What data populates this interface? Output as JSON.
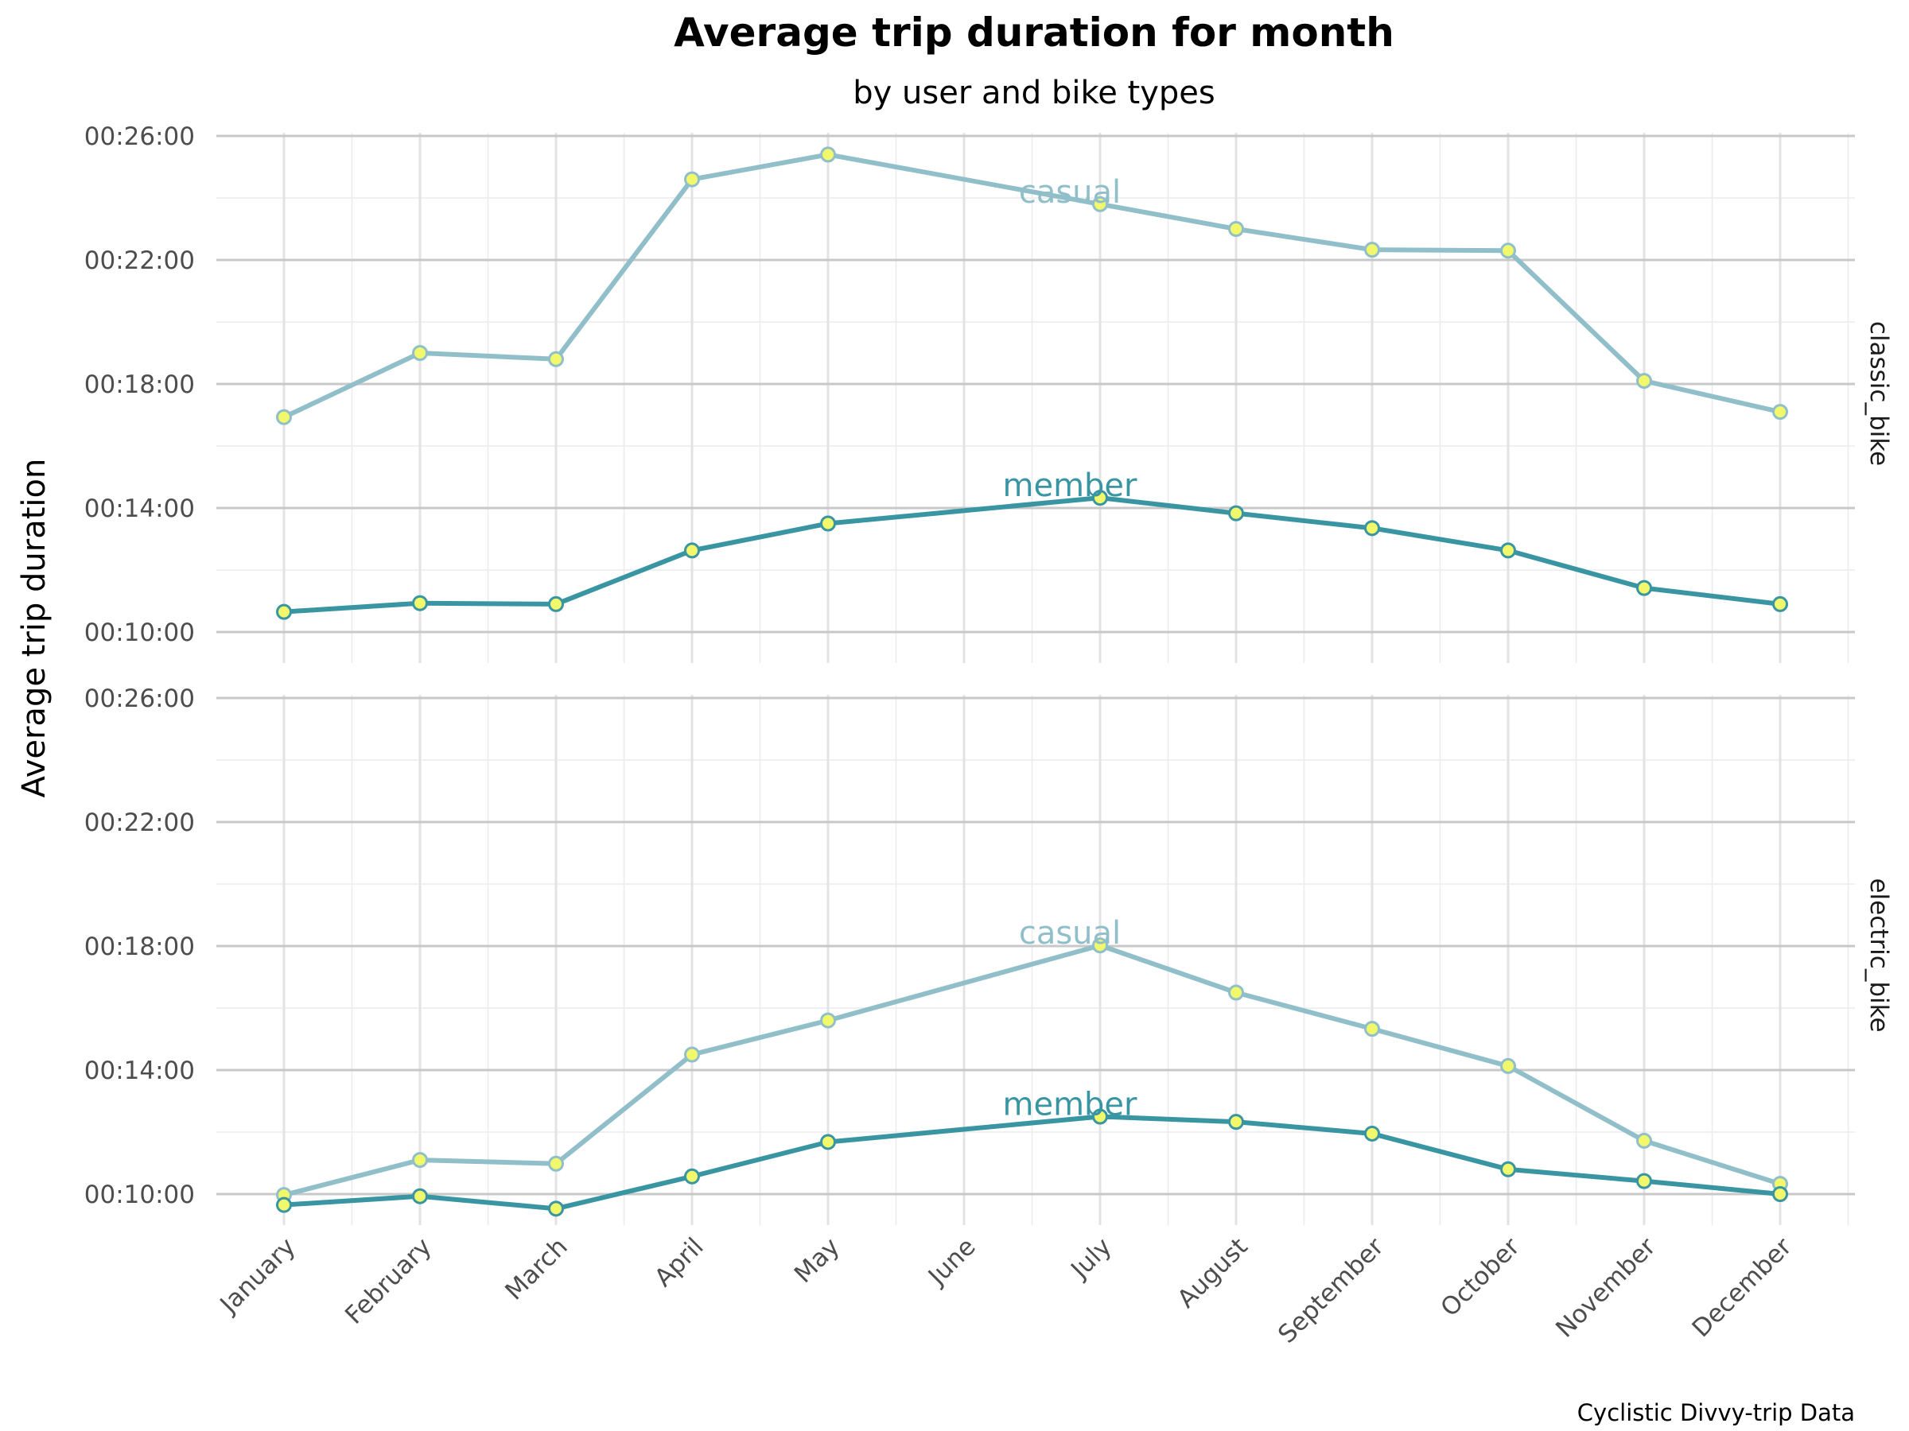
{
  "chart_data": {
    "type": "line",
    "title": "Average trip duration for month",
    "subtitle": "by user and bike types",
    "ylabel": "Average trip duration",
    "xlabel": "",
    "caption": "Cyclistic Divvy-trip Data",
    "categories": [
      "January",
      "February",
      "March",
      "April",
      "May",
      "June",
      "July",
      "August",
      "September",
      "October",
      "November",
      "December"
    ],
    "y_ticks": [
      "00:10:00",
      "00:14:00",
      "00:18:00",
      "00:22:00",
      "00:26:00"
    ],
    "y_tick_minutes": [
      10,
      14,
      18,
      22,
      26
    ],
    "ylim_minutes": [
      9.0,
      26.1
    ],
    "colors": {
      "casual": "#90bfca",
      "member": "#3a95a3",
      "point_fill": "#f1f86b"
    },
    "facets": [
      {
        "name": "classic_bike",
        "series": [
          {
            "name": "casual",
            "label": "casual",
            "label_at": "July",
            "values": [
              16.93,
              19.0,
              18.8,
              24.6,
              25.4,
              null,
              23.8,
              23.0,
              22.33,
              22.3,
              18.1,
              17.1
            ]
          },
          {
            "name": "member",
            "label": "member",
            "label_at": "July",
            "values": [
              10.65,
              10.93,
              10.9,
              12.63,
              13.5,
              null,
              14.33,
              13.83,
              13.35,
              12.63,
              11.42,
              10.9
            ]
          }
        ]
      },
      {
        "name": "electric_bike",
        "series": [
          {
            "name": "casual",
            "label": "casual",
            "label_at": "July",
            "values": [
              9.97,
              11.1,
              10.98,
              14.5,
              15.6,
              null,
              18.02,
              16.5,
              15.33,
              14.13,
              11.72,
              10.33
            ]
          },
          {
            "name": "member",
            "label": "member",
            "label_at": "July",
            "values": [
              9.65,
              9.93,
              9.53,
              10.57,
              11.68,
              null,
              12.5,
              12.33,
              11.95,
              10.8,
              10.42,
              10.0
            ]
          }
        ]
      }
    ]
  }
}
